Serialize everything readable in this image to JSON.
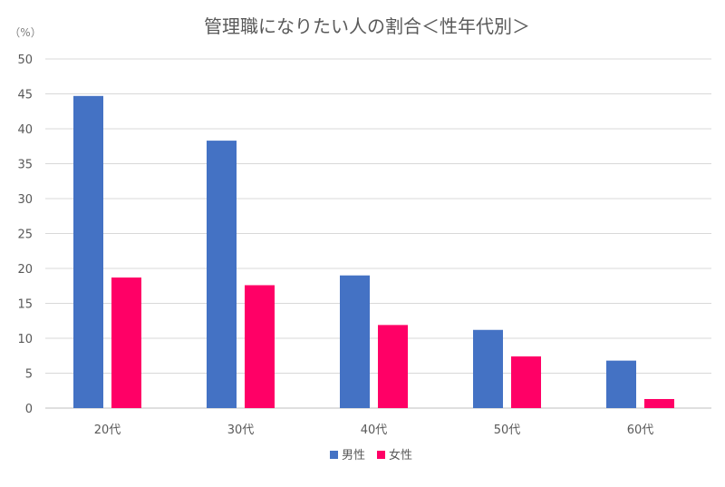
{
  "chart_data": {
    "type": "bar",
    "title": "管理職になりたい人の割合＜性年代別＞",
    "unit_label": "（%）",
    "categories": [
      "20代",
      "30代",
      "40代",
      "50代",
      "60代"
    ],
    "series": [
      {
        "name": "男性",
        "color": "#4472C4",
        "values": [
          44.7,
          38.3,
          19.0,
          11.2,
          6.8
        ]
      },
      {
        "name": "女性",
        "color": "#FF0066",
        "values": [
          18.7,
          17.6,
          11.9,
          7.4,
          1.3
        ]
      }
    ],
    "ylim": [
      0,
      50
    ],
    "yticks": [
      "0",
      "5",
      "10",
      "15",
      "20",
      "25",
      "30",
      "35",
      "40",
      "45",
      "50"
    ],
    "grid": true,
    "legend_position": "bottom-center"
  }
}
